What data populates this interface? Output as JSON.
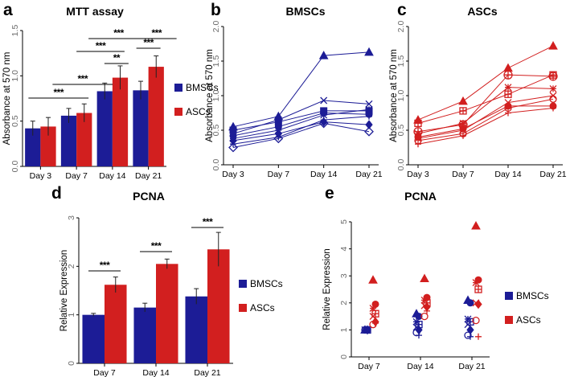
{
  "chart_data": [
    {
      "panel": "a",
      "type": "bar",
      "title": "MTT assay",
      "ylabel": "Absorbance at 570 nm",
      "ylim": [
        0,
        1.5
      ],
      "yticks": [
        "0.0",
        "0.5",
        "1.0",
        "1.5"
      ],
      "categories": [
        "Day 3",
        "Day 7",
        "Day 14",
        "Day 21"
      ],
      "series": [
        {
          "name": "BMSCs",
          "color": "#1c1c96",
          "values": [
            0.42,
            0.56,
            0.83,
            0.84
          ],
          "errors": [
            0.08,
            0.08,
            0.09,
            0.1
          ]
        },
        {
          "name": "ASCs",
          "color": "#d21f1f",
          "values": [
            0.44,
            0.59,
            0.98,
            1.1
          ],
          "errors": [
            0.1,
            0.1,
            0.13,
            0.12
          ]
        }
      ],
      "significance": [
        "***",
        "***",
        "***",
        "***",
        "**",
        "***",
        "***"
      ]
    },
    {
      "panel": "b",
      "type": "line",
      "title": "BMSCs",
      "ylabel": "Absorbance at 570 nm",
      "ylim": [
        0,
        2.0
      ],
      "yticks": [
        "0.0",
        "0.5",
        "1.0",
        "1.5",
        "2.0"
      ],
      "categories": [
        "Day 3",
        "Day 7",
        "Day 14",
        "Day 21"
      ],
      "color": "#1c1c96",
      "series": [
        {
          "marker": "triangle",
          "values": [
            0.55,
            0.7,
            1.58,
            1.63
          ]
        },
        {
          "marker": "x",
          "values": [
            0.45,
            0.65,
            0.93,
            0.88
          ]
        },
        {
          "marker": "square",
          "values": [
            0.5,
            0.62,
            0.78,
            0.78
          ]
        },
        {
          "marker": "circle",
          "values": [
            0.42,
            0.55,
            0.75,
            0.73
          ]
        },
        {
          "marker": "star",
          "values": [
            0.38,
            0.5,
            0.72,
            0.8
          ]
        },
        {
          "marker": "diamond",
          "values": [
            0.35,
            0.45,
            0.62,
            0.58
          ]
        },
        {
          "marker": "cross",
          "values": [
            0.3,
            0.4,
            0.65,
            0.7
          ]
        },
        {
          "marker": "diamond-open",
          "values": [
            0.25,
            0.38,
            0.6,
            0.48
          ]
        }
      ]
    },
    {
      "panel": "c",
      "type": "line",
      "title": "ASCs",
      "ylabel": "Absorbance at 570 nm",
      "ylim": [
        0,
        2.0
      ],
      "yticks": [
        "0.0",
        "0.5",
        "1.0",
        "1.5",
        "2.0"
      ],
      "categories": [
        "Day 3",
        "Day 7",
        "Day 14",
        "Day 21"
      ],
      "color": "#d21f1f",
      "series": [
        {
          "marker": "triangle",
          "values": [
            0.65,
            0.92,
            1.4,
            1.72
          ]
        },
        {
          "marker": "circle-cross",
          "values": [
            0.48,
            0.58,
            1.3,
            1.28
          ]
        },
        {
          "marker": "square-open",
          "values": [
            0.6,
            0.78,
            1.02,
            1.3
          ]
        },
        {
          "marker": "star",
          "values": [
            0.45,
            0.6,
            1.12,
            1.1
          ]
        },
        {
          "marker": "x",
          "values": [
            0.38,
            0.5,
            0.9,
            1.0
          ]
        },
        {
          "marker": "circle",
          "values": [
            0.4,
            0.52,
            0.85,
            0.85
          ]
        },
        {
          "marker": "circle-open",
          "values": [
            0.35,
            0.45,
            0.82,
            0.95
          ]
        },
        {
          "marker": "cross",
          "values": [
            0.3,
            0.42,
            0.75,
            0.82
          ]
        }
      ]
    },
    {
      "panel": "d",
      "type": "bar",
      "title": "PCNA",
      "ylabel": "Relative Expression",
      "ylim": [
        0,
        3
      ],
      "yticks": [
        "0",
        "1",
        "2",
        "3"
      ],
      "categories": [
        "Day 7",
        "Day 14",
        "Day 21"
      ],
      "series": [
        {
          "name": "BMSCs",
          "color": "#1c1c96",
          "values": [
            1.0,
            1.15,
            1.38
          ],
          "errors": [
            0.03,
            0.09,
            0.16
          ]
        },
        {
          "name": "ASCs",
          "color": "#d21f1f",
          "values": [
            1.62,
            2.05,
            2.35
          ],
          "errors": [
            0.16,
            0.1,
            0.35
          ]
        }
      ],
      "significance": [
        "***",
        "***",
        "***"
      ]
    },
    {
      "panel": "e",
      "type": "scatter",
      "title": "PCNA",
      "ylabel": "Relative Expression",
      "ylim": [
        0,
        5
      ],
      "yticks": [
        "0",
        "1",
        "2",
        "3",
        "4",
        "5"
      ],
      "categories": [
        "Day 7",
        "Day 14",
        "Day 21"
      ],
      "series": [
        {
          "name": "BMSCs",
          "color": "#1c1c96",
          "values": [
            [
              1.0,
              1.0,
              1.0,
              1.0,
              1.0,
              1.0,
              1.0,
              1.0
            ],
            [
              1.6,
              1.5,
              1.3,
              1.2,
              1.1,
              1.0,
              0.9,
              0.8
            ],
            [
              2.1,
              2.0,
              1.4,
              1.3,
              1.2,
              1.0,
              0.8,
              0.75
            ]
          ]
        },
        {
          "name": "ASCs",
          "color": "#d21f1f",
          "values": [
            [
              2.85,
              1.95,
              1.8,
              1.6,
              1.5,
              1.3,
              1.2,
              1.25
            ],
            [
              2.9,
              2.2,
              2.1,
              2.0,
              1.9,
              1.85,
              1.5,
              1.7
            ],
            [
              4.85,
              2.85,
              2.75,
              2.5,
              2.0,
              1.95,
              1.35,
              0.75
            ]
          ]
        }
      ]
    }
  ]
}
